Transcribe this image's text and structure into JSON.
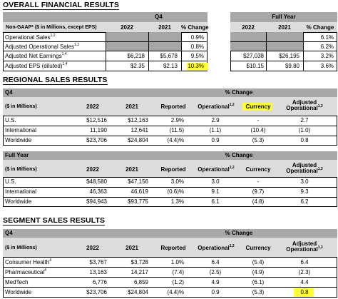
{
  "overall": {
    "title": "OVERALL FINANCIAL RESULTS",
    "q4_label": "Q4",
    "fy_label": "Full Year",
    "col_label": "Non-GAAP* ($ in Millions, except EPS)",
    "cols_q4": [
      "2022",
      "2021",
      "% Change"
    ],
    "cols_fy": [
      "2022",
      "2021",
      "% Change"
    ],
    "rows": [
      {
        "label": "Operational Sales",
        "sup": "1,2",
        "q4": [
          "",
          "",
          "0.9%"
        ],
        "fy": [
          "",
          "",
          "6.1%"
        ]
      },
      {
        "label": "Adjusted Operational Sales",
        "sup": "1,3",
        "q4": [
          "",
          "",
          "0.8%"
        ],
        "fy": [
          "",
          "",
          "6.2%"
        ]
      },
      {
        "label": "Adjusted Net Earnings",
        "sup": "1,4",
        "q4": [
          "$6,218",
          "$5,678",
          "9.5%"
        ],
        "fy": [
          "$27,038",
          "$26,195",
          "3.2%"
        ]
      },
      {
        "label": "Adjusted EPS (diluted)",
        "sup": "1,4",
        "q4": [
          "$2.35",
          "$2.13",
          "10.3%"
        ],
        "fy": [
          "$10.15",
          "$9.80",
          "3.6%"
        ]
      }
    ]
  },
  "regional": {
    "title": "REGIONAL SALES RESULTS",
    "q4": {
      "period": "Q4",
      "pct_change": "% Change",
      "units": "($ in Millions)",
      "cols": [
        "2022",
        "2021",
        "Reported",
        "Operational",
        "Currency",
        "Adjusted Operational"
      ],
      "col_sups": [
        "",
        "",
        "",
        "1,2",
        "",
        "1,3"
      ],
      "rows": [
        {
          "label": "U.S.",
          "vals": [
            "$12,516",
            "$12,163",
            "2.9%",
            "2.9",
            "-",
            "2.7"
          ]
        },
        {
          "label": "International",
          "vals": [
            "11,190",
            "12,641",
            "(11.5)",
            "(1.1)",
            "(10.4)",
            "(1.0)"
          ]
        },
        {
          "label": "Worldwide",
          "vals": [
            "$23,706",
            "$24,804",
            "(4.4)%",
            "0.9",
            "(5.3)",
            "0.8"
          ]
        }
      ]
    },
    "fy": {
      "period": "Full Year",
      "pct_change": "% Change",
      "units": "($ in Millions)",
      "cols": [
        "2022",
        "2021",
        "Reported",
        "Operational",
        "Currency",
        "Adjusted Operational"
      ],
      "col_sups": [
        "",
        "",
        "",
        "1,2",
        "",
        "1,3"
      ],
      "rows": [
        {
          "label": "U.S.",
          "vals": [
            "$48,580",
            "$47,156",
            "3.0%",
            "3.0",
            "-",
            "3.0"
          ]
        },
        {
          "label": "International",
          "vals": [
            "46,363",
            "46,619",
            "(0.6)%",
            "9.1",
            "(9.7)",
            "9.3"
          ]
        },
        {
          "label": "Worldwide",
          "vals": [
            "$94,943",
            "$93,775",
            "1.3%",
            "6.1",
            "(4.8)",
            "6.2"
          ]
        }
      ]
    }
  },
  "segment": {
    "title": "SEGMENT SALES RESULTS",
    "q4": {
      "period": "Q4",
      "pct_change": "% Change",
      "units": "($ in Millions)",
      "cols": [
        "2022",
        "2021",
        "Reported",
        "Operational",
        "Currency",
        "Adjusted Operational"
      ],
      "col_sups": [
        "",
        "",
        "",
        "1,2",
        "",
        "1,3"
      ],
      "rows": [
        {
          "label": "Consumer Health",
          "sup": "4",
          "vals": [
            "$3,767",
            "$3,728",
            "1.0%",
            "6.4",
            "(5.4)",
            "6.4"
          ]
        },
        {
          "label": "Pharmaceutical",
          "sup": "4",
          "vals": [
            "13,163",
            "14,217",
            "(7.4)",
            "(2.5)",
            "(4.9)",
            "(2.3)"
          ]
        },
        {
          "label": "MedTech",
          "sup": "",
          "vals": [
            "6,776",
            "6,859",
            "(1.2)",
            "4.9",
            "(6.1)",
            "4.4"
          ]
        },
        {
          "label": "Worldwide",
          "sup": "",
          "vals": [
            "$23,706",
            "$24,804",
            "(4.4)%",
            "0.9",
            "(5.3)",
            "0.8"
          ]
        }
      ]
    }
  },
  "colors": {
    "header": "#a8a8a8",
    "subheader": "#dcdcdc",
    "highlight": "#ffff33",
    "greyed": "#a6a6a6"
  }
}
